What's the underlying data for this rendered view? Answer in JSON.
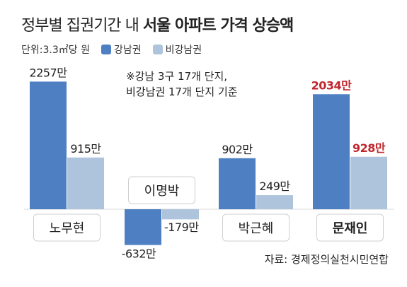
{
  "title": {
    "part1": "정부별 집권기간 내",
    "part2": "서울 아파트 가격 상승액"
  },
  "unit_label": "단위:3.3㎡당 원",
  "note": {
    "line1": "※강남 3구 17개 단지,",
    "line2": "비강남권 17개 단지 기준"
  },
  "source": "자료: 경제정의실천시민연합",
  "colors": {
    "gangnam": "#4d7fc2",
    "non_gangnam": "#aec4dc",
    "highlight_label": "#c0272d",
    "tag_bg": "#ffffff"
  },
  "chart_data": {
    "type": "bar",
    "categories": [
      "노무현",
      "이명박",
      "박근혜",
      "문재인"
    ],
    "highlight_category": "문재인",
    "series": [
      {
        "name": "강남권",
        "values": [
          2257,
          -632,
          902,
          2034
        ],
        "labels": [
          "2257만",
          "-632만",
          "902만",
          "2034만"
        ]
      },
      {
        "name": "비강남권",
        "values": [
          915,
          -179,
          249,
          928
        ],
        "labels": [
          "915만",
          "-179만",
          "249만",
          "928만"
        ]
      }
    ],
    "ylim": [
      -700,
      2300
    ],
    "grid": false,
    "legend": "top-left"
  }
}
